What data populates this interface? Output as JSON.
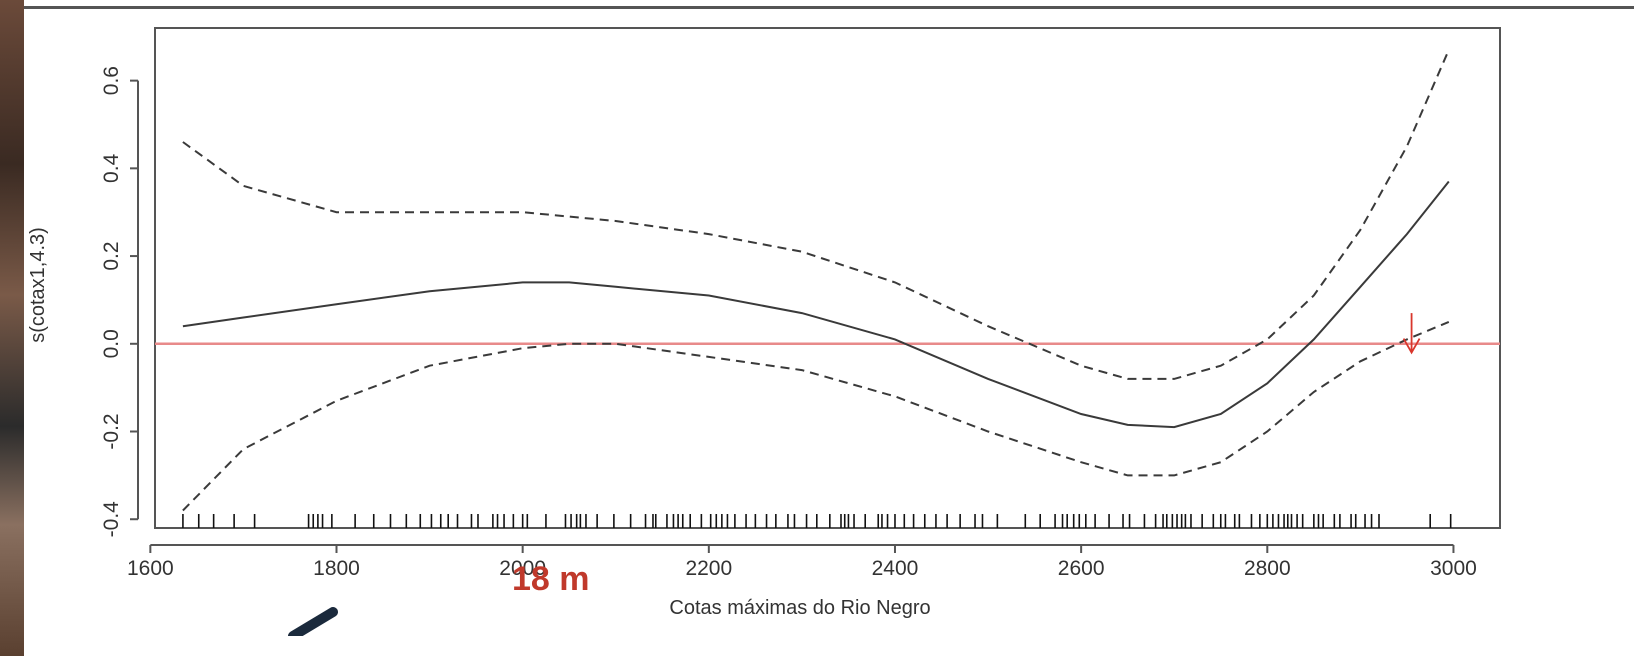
{
  "chart_data": {
    "type": "line",
    "xlabel": "Cotas máximas do Rio Negro",
    "ylabel": "s(cotax1,4.3)",
    "xlim": [
      1605,
      3050
    ],
    "ylim": [
      -0.42,
      0.72
    ],
    "x_ticks": [
      "1600",
      "1800",
      "2000",
      "2200",
      "2400",
      "2600",
      "2800",
      "3000"
    ],
    "y_ticks": [
      "-0.4",
      "-0.2",
      "0.0",
      "0.2",
      "0.4",
      "0.6"
    ],
    "series": [
      {
        "style": "solid",
        "x": [
          1635,
          1700,
          1800,
          1900,
          2000,
          2050,
          2100,
          2200,
          2300,
          2400,
          2500,
          2600,
          2650,
          2700,
          2750,
          2800,
          2850,
          2900,
          2950,
          2995
        ],
        "y": [
          0.04,
          0.06,
          0.09,
          0.12,
          0.14,
          0.14,
          0.13,
          0.11,
          0.07,
          0.01,
          -0.08,
          -0.16,
          -0.185,
          -0.19,
          -0.16,
          -0.09,
          0.01,
          0.13,
          0.25,
          0.37
        ]
      },
      {
        "style": "dashed",
        "x": [
          1635,
          1700,
          1800,
          1900,
          2000,
          2100,
          2200,
          2300,
          2400,
          2500,
          2600,
          2650,
          2700,
          2750,
          2800,
          2850,
          2900,
          2950,
          2995
        ],
        "y": [
          0.46,
          0.36,
          0.3,
          0.3,
          0.3,
          0.28,
          0.25,
          0.21,
          0.14,
          0.04,
          -0.05,
          -0.08,
          -0.08,
          -0.05,
          0.01,
          0.11,
          0.26,
          0.45,
          0.67
        ]
      },
      {
        "style": "dashed",
        "x": [
          1635,
          1700,
          1800,
          1900,
          2000,
          2050,
          2100,
          2200,
          2300,
          2400,
          2500,
          2600,
          2650,
          2700,
          2750,
          2800,
          2850,
          2900,
          2950,
          2995
        ],
        "y": [
          -0.38,
          -0.24,
          -0.13,
          -0.05,
          -0.01,
          0.0,
          0.0,
          -0.03,
          -0.06,
          -0.12,
          -0.2,
          -0.27,
          -0.3,
          -0.3,
          -0.27,
          -0.2,
          -0.11,
          -0.04,
          0.01,
          0.05
        ]
      }
    ],
    "reference_line": {
      "y": 0.0,
      "color": "#e88a8a"
    },
    "marker_arrow": {
      "x": 2955,
      "y_from": 0.07,
      "y_to": -0.02,
      "color": "#d9362c"
    },
    "rug_x": [
      1635,
      1652,
      1668,
      1690,
      1712,
      1770,
      1775,
      1780,
      1785,
      1795,
      1820,
      1840,
      1858,
      1875,
      1890,
      1902,
      1912,
      1920,
      1930,
      1945,
      1952,
      1968,
      1973,
      1980,
      1990,
      2000,
      2005,
      2025,
      2046,
      2052,
      2058,
      2062,
      2068,
      2080,
      2098,
      2116,
      2132,
      2140,
      2143,
      2155,
      2162,
      2167,
      2172,
      2180,
      2192,
      2202,
      2208,
      2214,
      2220,
      2228,
      2240,
      2250,
      2262,
      2272,
      2285,
      2292,
      2305,
      2316,
      2330,
      2342,
      2346,
      2350,
      2356,
      2368,
      2382,
      2386,
      2392,
      2400,
      2410,
      2420,
      2432,
      2444,
      2456,
      2470,
      2486,
      2494,
      2510,
      2540,
      2556,
      2572,
      2580,
      2585,
      2592,
      2598,
      2605,
      2615,
      2630,
      2645,
      2652,
      2668,
      2680,
      2688,
      2692,
      2698,
      2703,
      2708,
      2712,
      2718,
      2730,
      2742,
      2750,
      2755,
      2765,
      2770,
      2783,
      2792,
      2800,
      2806,
      2812,
      2818,
      2822,
      2826,
      2832,
      2838,
      2850,
      2855,
      2860,
      2872,
      2878,
      2890,
      2895,
      2905,
      2912,
      2920,
      2975,
      2997
    ],
    "annotation": "18 m",
    "colors": {
      "axis": "#555555",
      "text": "#333333",
      "reference": "#e88a8a",
      "arrow": "#d9362c",
      "annotation": "#c0392b"
    }
  }
}
